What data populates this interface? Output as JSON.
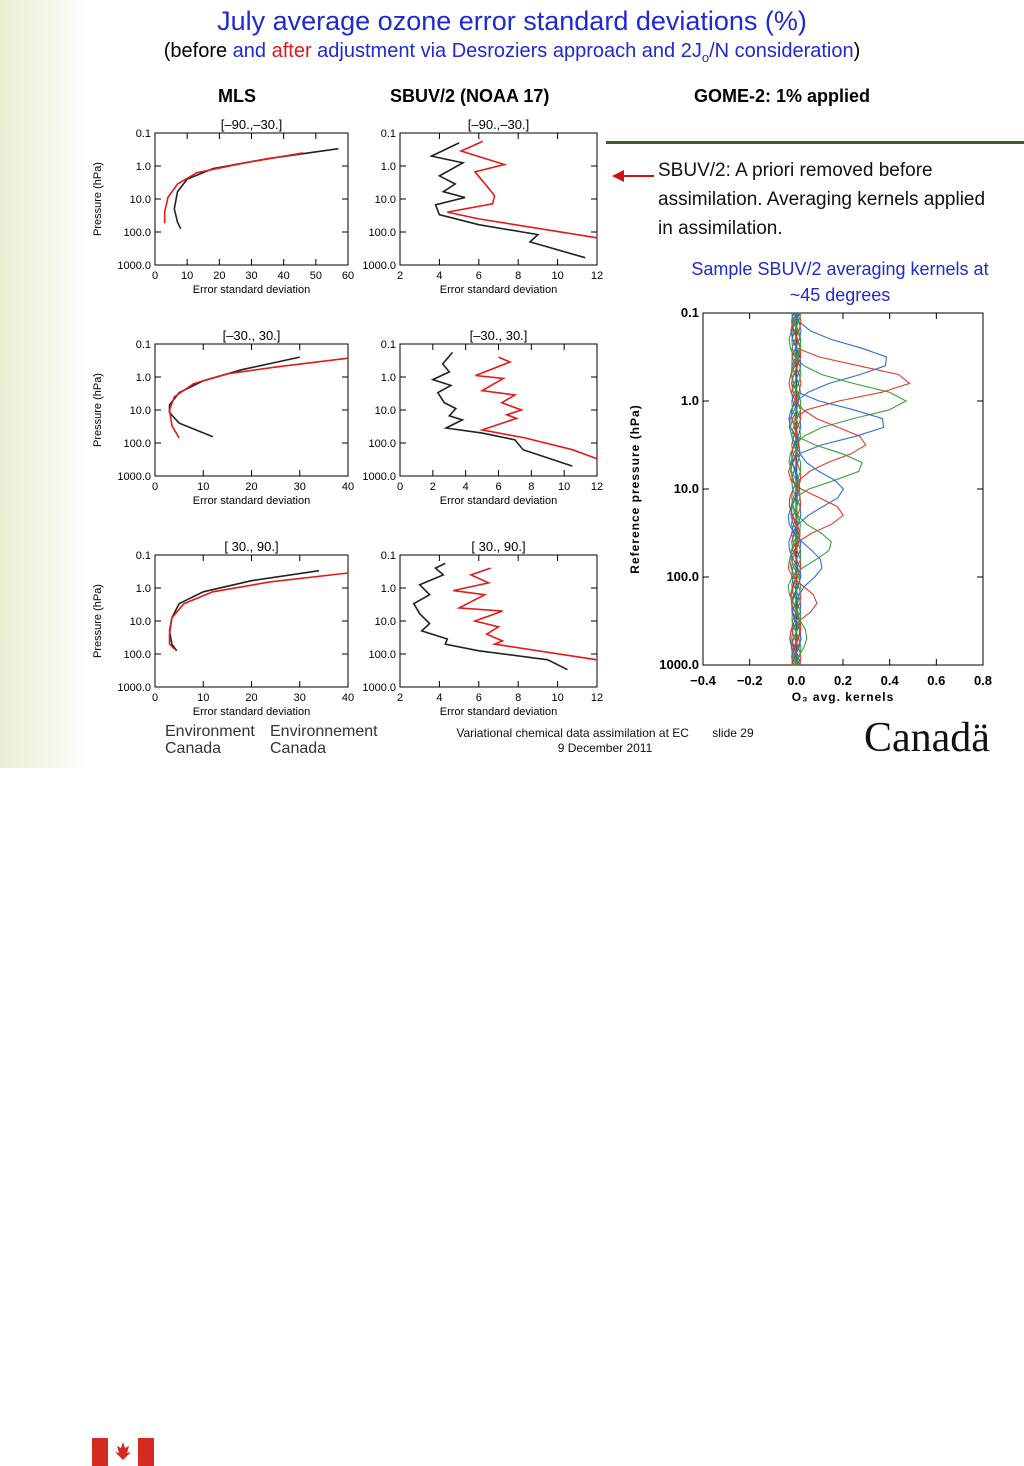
{
  "title": {
    "line1": "July average ozone error standard deviations (%)",
    "line2_p1": "(",
    "line2_p2": "before",
    "line2_p3": " and ",
    "line2_p4": "after",
    "line2_p5": " adjustment via Desroziers approach and 2J",
    "line2_sub": "o",
    "line2_p6": "/N consideration",
    "line2_p7": ")"
  },
  "column_headers": {
    "mls": "MLS",
    "sbuv": "SBUV/2 (NOAA 17)",
    "gome": "GOME-2: 1% applied"
  },
  "note_text": "SBUV/2: A priori removed before assimilation. Averaging kernels applied in assimilation.",
  "kernel_caption": "Sample SBUV/2 averaging kernels at ~45 degrees",
  "footer": {
    "env_en_1": "Environment",
    "env_en_2": "Canada",
    "env_fr_1": "Environnement",
    "env_fr_2": "Canada",
    "center": "Variational chemical data assimilation at EC",
    "slide": "slide  29",
    "date": "9 December 2011",
    "wordmark": "Canadä"
  },
  "colors": {
    "before": "#222222",
    "after": "#e41a1a",
    "title_blue": "#1f2ad0"
  },
  "chart_data": [
    {
      "type": "line",
      "panel": "MLS",
      "subtitle": "[–90.,–30.]",
      "xlabel": "Error standard deviation",
      "ylabel": "Pressure (hPa)",
      "xlim": [
        0,
        60
      ],
      "xticks": [
        0,
        10,
        20,
        30,
        40,
        50,
        60
      ],
      "ylim": [
        0.1,
        1000
      ],
      "ylog": true,
      "yticks": [
        "0.1",
        "1.0",
        "10.0",
        "100.0",
        "1000.0"
      ],
      "series": [
        {
          "name": "before",
          "color": "#222222",
          "points": [
            [
              57,
              0.3
            ],
            [
              35,
              0.6
            ],
            [
              18,
              1.2
            ],
            [
              10,
              2.5
            ],
            [
              7,
              6
            ],
            [
              6,
              20
            ],
            [
              7,
              50
            ],
            [
              8,
              80
            ]
          ]
        },
        {
          "name": "after",
          "color": "#e41a1a",
          "points": [
            [
              46,
              0.4
            ],
            [
              28,
              0.8
            ],
            [
              13,
              1.6
            ],
            [
              7,
              3.5
            ],
            [
              4,
              9
            ],
            [
              3,
              25
            ],
            [
              3,
              55
            ]
          ]
        }
      ]
    },
    {
      "type": "line",
      "panel": "SBUV/2 (NOAA 17)",
      "subtitle": "[–90.,–30.]",
      "xlabel": "Error standard deviation",
      "ylabel": "",
      "xlim": [
        2,
        12
      ],
      "xticks": [
        2,
        4,
        6,
        8,
        10,
        12
      ],
      "ylim": [
        0.1,
        1000
      ],
      "ylog": true,
      "yticks": [
        "0.1",
        "1.0",
        "10.0",
        "100.0",
        "1000.0"
      ],
      "series": [
        {
          "name": "before",
          "color": "#222222",
          "points": [
            [
              5.0,
              0.2
            ],
            [
              3.6,
              0.5
            ],
            [
              5.2,
              0.8
            ],
            [
              4.0,
              2.0
            ],
            [
              4.8,
              3.5
            ],
            [
              4.2,
              6
            ],
            [
              5.3,
              9
            ],
            [
              3.8,
              15
            ],
            [
              4.0,
              30
            ],
            [
              6.0,
              60
            ],
            [
              9.0,
              120
            ],
            [
              8.6,
              200
            ],
            [
              11.4,
              600
            ]
          ]
        },
        {
          "name": "after",
          "color": "#e41a1a",
          "points": [
            [
              6.2,
              0.18
            ],
            [
              5.1,
              0.35
            ],
            [
              7.3,
              0.9
            ],
            [
              5.8,
              1.5
            ],
            [
              6.4,
              4
            ],
            [
              6.8,
              8
            ],
            [
              6.7,
              14
            ],
            [
              4.4,
              25
            ],
            [
              6.0,
              40
            ],
            [
              12,
              150
            ]
          ]
        }
      ]
    },
    {
      "type": "line",
      "panel": "MLS",
      "subtitle": "[–30., 30.]",
      "xlabel": "Error standard deviation",
      "ylabel": "Pressure (hPa)",
      "xlim": [
        0,
        40
      ],
      "xticks": [
        0,
        10,
        20,
        30,
        40
      ],
      "ylim": [
        0.1,
        1000
      ],
      "ylog": true,
      "yticks": [
        "0.1",
        "1.0",
        "10.0",
        "100.0",
        "1000.0"
      ],
      "series": [
        {
          "name": "before",
          "color": "#222222",
          "points": [
            [
              30,
              0.25
            ],
            [
              18,
              0.6
            ],
            [
              10,
              1.3
            ],
            [
              5,
              3
            ],
            [
              3,
              7
            ],
            [
              3,
              12
            ],
            [
              5,
              25
            ],
            [
              12,
              65
            ]
          ]
        },
        {
          "name": "after",
          "color": "#e41a1a",
          "points": [
            [
              40,
              0.27
            ],
            [
              25,
              0.5
            ],
            [
              15,
              0.8
            ],
            [
              8,
              1.6
            ],
            [
              4,
              4
            ],
            [
              3,
              10
            ],
            [
              3.5,
              30
            ],
            [
              5,
              70
            ]
          ]
        }
      ]
    },
    {
      "type": "line",
      "panel": "SBUV/2 (NOAA 17)",
      "subtitle": "[–30., 30.]",
      "xlabel": "Error standard deviation",
      "ylabel": "",
      "xlim": [
        0,
        12
      ],
      "xticks": [
        0,
        2,
        4,
        6,
        8,
        10,
        12
      ],
      "ylim": [
        0.1,
        1000
      ],
      "ylog": true,
      "yticks": [
        "0.1",
        "1.0",
        "10.0",
        "100.0",
        "1000.0"
      ],
      "series": [
        {
          "name": "before",
          "color": "#222222",
          "points": [
            [
              3.2,
              0.18
            ],
            [
              2.6,
              0.4
            ],
            [
              3.0,
              0.7
            ],
            [
              2.0,
              1.2
            ],
            [
              3.1,
              1.8
            ],
            [
              2.3,
              3
            ],
            [
              2.7,
              6
            ],
            [
              3.4,
              9
            ],
            [
              3.0,
              15
            ],
            [
              3.8,
              20
            ],
            [
              2.8,
              35
            ],
            [
              5.0,
              50
            ],
            [
              7.0,
              80
            ],
            [
              7.5,
              160
            ],
            [
              10.5,
              500
            ]
          ]
        },
        {
          "name": "after",
          "color": "#e41a1a",
          "points": [
            [
              6.0,
              0.25
            ],
            [
              6.7,
              0.35
            ],
            [
              4.6,
              0.9
            ],
            [
              6.3,
              1.1
            ],
            [
              5.0,
              2.6
            ],
            [
              7.0,
              3.5
            ],
            [
              6.2,
              6
            ],
            [
              7.4,
              10
            ],
            [
              6.5,
              14
            ],
            [
              7.1,
              18
            ],
            [
              5.0,
              40
            ],
            [
              7.6,
              70
            ],
            [
              10.5,
              160
            ],
            [
              12,
              300
            ]
          ]
        }
      ]
    },
    {
      "type": "line",
      "panel": "MLS",
      "subtitle": "[ 30., 90.]",
      "xlabel": "Error standard deviation",
      "ylabel": "Pressure (hPa)",
      "xlim": [
        0,
        40
      ],
      "xticks": [
        0,
        10,
        20,
        30,
        40
      ],
      "ylim": [
        0.1,
        1000
      ],
      "ylog": true,
      "yticks": [
        "0.1",
        "1.0",
        "10.0",
        "100.0",
        "1000.0"
      ],
      "series": [
        {
          "name": "before",
          "color": "#222222",
          "points": [
            [
              34,
              0.3
            ],
            [
              20,
              0.6
            ],
            [
              10,
              1.3
            ],
            [
              5,
              3
            ],
            [
              3.5,
              8
            ],
            [
              3,
              20
            ],
            [
              3.5,
              50
            ],
            [
              4.5,
              80
            ]
          ]
        },
        {
          "name": "after",
          "color": "#e41a1a",
          "points": [
            [
              40,
              0.35
            ],
            [
              24,
              0.65
            ],
            [
              12,
              1.3
            ],
            [
              6,
              3
            ],
            [
              3.5,
              8
            ],
            [
              3,
              25
            ],
            [
              3,
              50
            ],
            [
              4,
              70
            ]
          ]
        }
      ]
    },
    {
      "type": "line",
      "panel": "SBUV/2 (NOAA 17)",
      "subtitle": "[ 30., 90.]",
      "xlabel": "Error standard deviation",
      "ylabel": "",
      "xlim": [
        2,
        12
      ],
      "xticks": [
        2,
        4,
        6,
        8,
        10,
        12
      ],
      "ylim": [
        0.1,
        1000
      ],
      "ylog": true,
      "yticks": [
        "0.1",
        "1.0",
        "10.0",
        "100.0",
        "1000.0"
      ],
      "series": [
        {
          "name": "before",
          "color": "#222222",
          "points": [
            [
              4.3,
              0.18
            ],
            [
              3.8,
              0.25
            ],
            [
              4.2,
              0.4
            ],
            [
              3.0,
              0.8
            ],
            [
              3.5,
              1.6
            ],
            [
              2.7,
              3
            ],
            [
              3.0,
              6
            ],
            [
              3.5,
              12
            ],
            [
              3.1,
              20
            ],
            [
              4.4,
              35
            ],
            [
              4.3,
              50
            ],
            [
              6.0,
              80
            ],
            [
              9.5,
              150
            ],
            [
              10.5,
              300
            ]
          ]
        },
        {
          "name": "after",
          "color": "#e41a1a",
          "points": [
            [
              6.6,
              0.25
            ],
            [
              5.6,
              0.4
            ],
            [
              6.5,
              0.7
            ],
            [
              4.7,
              1.2
            ],
            [
              6.3,
              1.6
            ],
            [
              5.0,
              4
            ],
            [
              7.2,
              5
            ],
            [
              5.8,
              10
            ],
            [
              7.0,
              15
            ],
            [
              6.4,
              25
            ],
            [
              7.2,
              40
            ],
            [
              6.8,
              50
            ],
            [
              12,
              150
            ]
          ]
        }
      ]
    },
    {
      "type": "line",
      "panel": "SBUV/2 averaging kernels",
      "subtitle": "",
      "xlabel": "O₃ avg. kernels",
      "ylabel": "Reference pressure (hPa)",
      "xlim": [
        -0.4,
        0.8
      ],
      "xticks": [
        -0.4,
        -0.2,
        0.0,
        0.2,
        0.4,
        0.6,
        0.8
      ],
      "ylim": [
        0.1,
        1000
      ],
      "ylog": true,
      "yticks": [
        "0.1",
        "1.0",
        "10.0",
        "100.0",
        "1000.0"
      ],
      "kernels": [
        {
          "color": "#2f6fd6",
          "peak": 0.45,
          "center": 0.35
        },
        {
          "color": "#e03c2c",
          "peak": 0.5,
          "center": 0.6
        },
        {
          "color": "#3aa040",
          "peak": 0.52,
          "center": 1.0
        },
        {
          "color": "#2f6fd6",
          "peak": 0.4,
          "center": 1.8
        },
        {
          "color": "#e03c2c",
          "peak": 0.35,
          "center": 3.0
        },
        {
          "color": "#3aa040",
          "peak": 0.3,
          "center": 5.5
        },
        {
          "color": "#2f6fd6",
          "peak": 0.25,
          "center": 10
        },
        {
          "color": "#e03c2c",
          "peak": 0.22,
          "center": 20
        },
        {
          "color": "#3aa040",
          "peak": 0.18,
          "center": 40
        },
        {
          "color": "#2f6fd6",
          "peak": 0.15,
          "center": 80
        },
        {
          "color": "#e03c2c",
          "peak": 0.1,
          "center": 200
        },
        {
          "color": "#3aa040",
          "peak": 0.08,
          "center": 400
        }
      ]
    }
  ]
}
